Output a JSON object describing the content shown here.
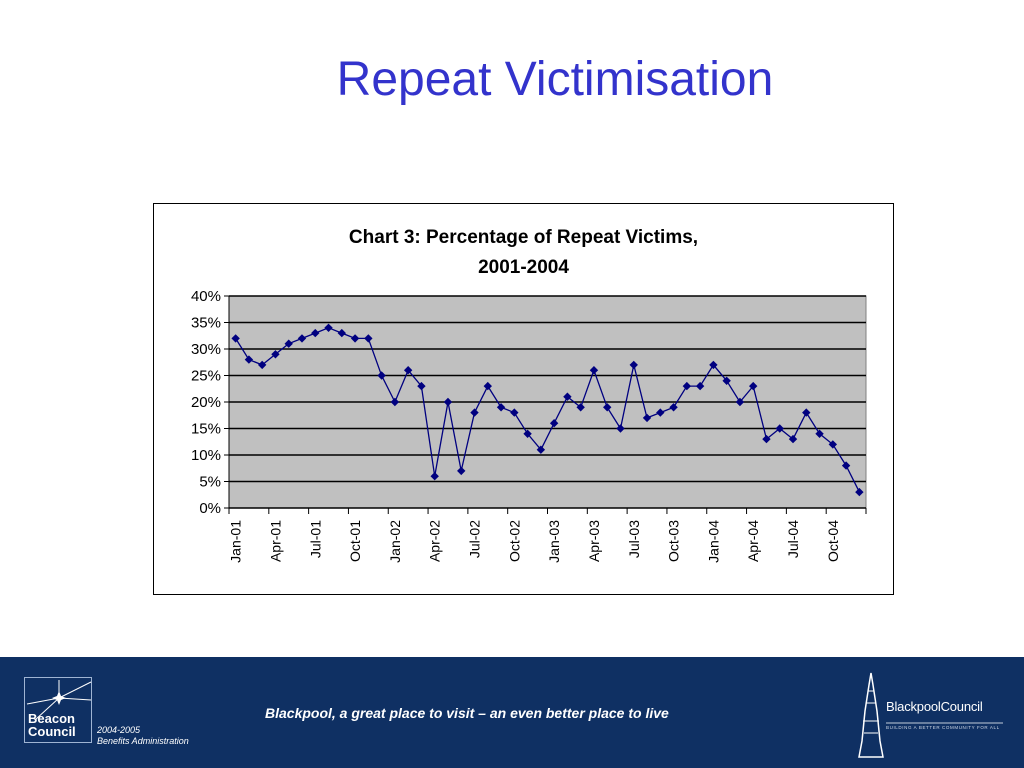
{
  "slide": {
    "title": "Repeat Victimisation"
  },
  "chart_data": {
    "type": "line",
    "title": "Chart 3: Percentage of Repeat Victims,",
    "subtitle": "2001-2004",
    "xlabel": "",
    "ylabel": "",
    "ylim": [
      0,
      40
    ],
    "yticks": [
      "0%",
      "5%",
      "10%",
      "15%",
      "20%",
      "25%",
      "30%",
      "35%",
      "40%"
    ],
    "grid": true,
    "legend": "none",
    "x_tick_labels": [
      "Jan-01",
      "Apr-01",
      "Jul-01",
      "Oct-01",
      "Jan-02",
      "Apr-02",
      "Jul-02",
      "Oct-02",
      "Jan-03",
      "Apr-03",
      "Jul-03",
      "Oct-03",
      "Jan-04",
      "Apr-04",
      "Jul-04",
      "Oct-04"
    ],
    "colors": {
      "line": "#000080",
      "plot_bg": "#c0c0c0"
    },
    "series": [
      {
        "values": [
          32,
          28,
          27,
          29,
          31,
          32,
          33,
          34,
          33,
          32,
          32,
          25,
          20,
          26,
          23,
          6,
          20,
          7,
          18,
          23,
          19,
          18,
          14,
          11,
          16,
          21,
          19,
          26,
          19,
          15,
          27,
          17,
          18,
          19,
          23,
          23,
          27,
          24,
          20,
          23,
          13,
          15,
          13,
          18,
          14,
          12,
          8,
          3
        ]
      }
    ]
  },
  "footer": {
    "beacon_line1": "Beacon",
    "beacon_line2": "Council",
    "beacon_year": "2004-2005",
    "beacon_scheme": "Benefits Administration",
    "tagline": "Blackpool, a great place to visit – an even better place to live",
    "council_name": "BlackpoolCouncil",
    "council_motto": "BUILDING A BETTER COMMUNITY FOR ALL",
    "colors": {
      "background": "#0f3063"
    }
  }
}
